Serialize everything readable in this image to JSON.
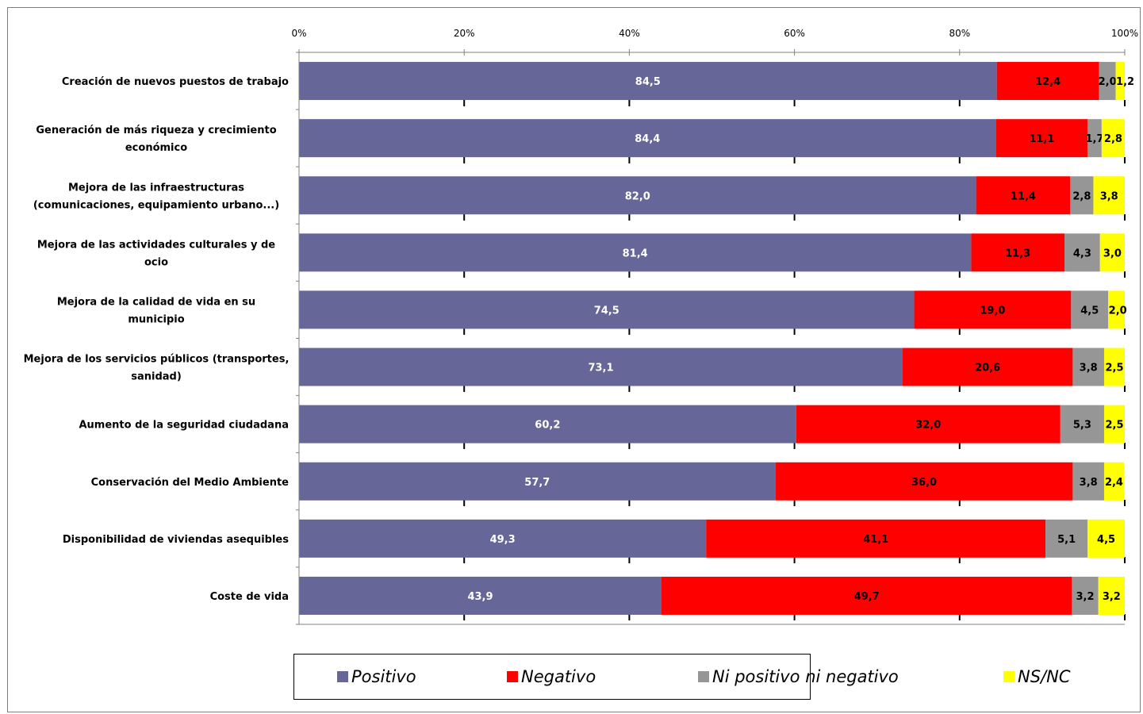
{
  "chart_data": {
    "type": "bar",
    "orientation": "horizontal",
    "stacked": true,
    "categories": [
      [
        "Creación de nuevos puestos de trabajo"
      ],
      [
        "Generación de más riqueza y crecimiento",
        "económico"
      ],
      [
        "Mejora de las infraestructuras",
        "(comunicaciones, equipamiento urbano...)"
      ],
      [
        "Mejora de las actividades culturales y de",
        "ocio"
      ],
      [
        "Mejora de la calidad de vida en su",
        "municipio"
      ],
      [
        "Mejora de los servicios públicos (transportes,",
        "sanidad)"
      ],
      [
        "Aumento de la seguridad ciudadana"
      ],
      [
        "Conservación del Medio Ambiente"
      ],
      [
        "Disponibilidad de viviendas asequibles"
      ],
      [
        "Coste de vida"
      ]
    ],
    "series": [
      {
        "name": "Positivo",
        "color": "#666699",
        "label_color": "#ffffff",
        "values": [
          84.5,
          84.4,
          82.0,
          81.4,
          74.5,
          73.1,
          60.2,
          57.7,
          49.3,
          43.9
        ],
        "labels": [
          "84,5",
          "84,4",
          "82,0",
          "81,4",
          "74,5",
          "73,1",
          "60,2",
          "57,7",
          "49,3",
          "43,9"
        ]
      },
      {
        "name": "Negativo",
        "color": "#ff0000",
        "label_color": "#000000",
        "values": [
          12.4,
          11.1,
          11.4,
          11.3,
          19.0,
          20.6,
          32.0,
          36.0,
          41.1,
          49.7
        ],
        "labels": [
          "12,4",
          "11,1",
          "11,4",
          "11,3",
          "19,0",
          "20,6",
          "32,0",
          "36,0",
          "41,1",
          "49,7"
        ]
      },
      {
        "name": "Ni positivo ni negativo",
        "color": "#969696",
        "label_color": "#000000",
        "values": [
          2.0,
          1.7,
          2.8,
          4.3,
          4.5,
          3.8,
          5.3,
          3.8,
          5.1,
          3.2
        ],
        "labels": [
          "2,0",
          "1,7",
          "2,8",
          "4,3",
          "4,5",
          "3,8",
          "5,3",
          "3,8",
          "5,1",
          "3,2"
        ]
      },
      {
        "name": "NS/NC",
        "color": "#ffff00",
        "label_color": "#000000",
        "values": [
          1.2,
          2.8,
          3.8,
          3.0,
          2.0,
          2.5,
          2.5,
          2.4,
          4.5,
          3.2
        ],
        "labels": [
          "1,2",
          "2,8",
          "3,8",
          "3,0",
          "2,0",
          "2,5",
          "2,5",
          "2,4",
          "4,5",
          "3,2"
        ]
      }
    ],
    "x_ticks": [
      "0%",
      "20%",
      "40%",
      "60%",
      "80%",
      "100%"
    ],
    "xlim": [
      0,
      100
    ],
    "axis_position": "top",
    "grid": "dashed vertical",
    "legend": "bottom"
  }
}
